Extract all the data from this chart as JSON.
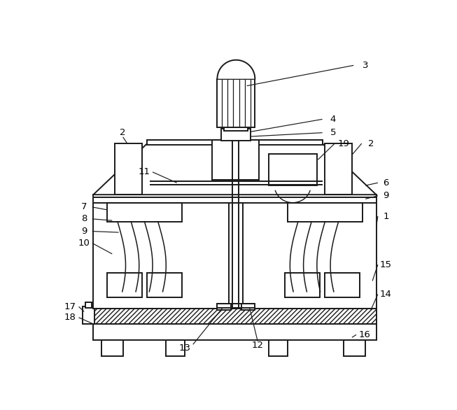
{
  "bg_color": "#ffffff",
  "line_color": "#1a1a1a",
  "lw": 1.4
}
